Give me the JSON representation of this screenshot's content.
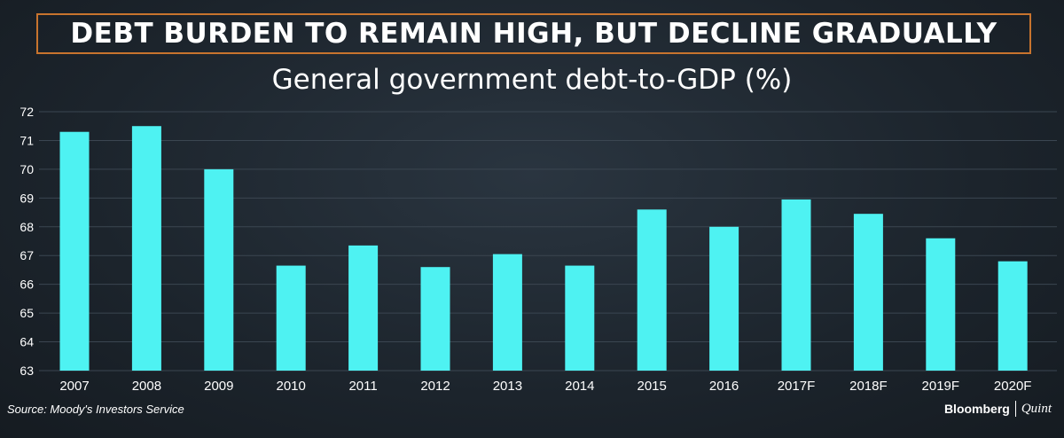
{
  "headline": "DEBT BURDEN TO REMAIN HIGH, BUT DECLINE GRADUALLY",
  "source": "Source: Moody's Investors Service",
  "brand": {
    "name": "Bloomberg",
    "partner": "Quint"
  },
  "colors": {
    "bar": "#4ef2f2",
    "grid": "#3b4651",
    "frame": "#c8742e",
    "text": "#ffffff"
  },
  "chart_data": {
    "type": "bar",
    "title": "General government debt-to-GDP (%)",
    "xlabel": "",
    "ylabel": "",
    "categories": [
      "2007",
      "2008",
      "2009",
      "2010",
      "2011",
      "2012",
      "2013",
      "2014",
      "2015",
      "2016",
      "2017F",
      "2018F",
      "2019F",
      "2020F"
    ],
    "values": [
      71.3,
      71.5,
      70.0,
      66.65,
      67.35,
      66.6,
      67.05,
      66.65,
      68.6,
      68.0,
      68.95,
      68.45,
      67.6,
      66.8
    ],
    "ylim": [
      63,
      72
    ],
    "yticks": [
      63,
      64,
      65,
      66,
      67,
      68,
      69,
      70,
      71,
      72
    ],
    "grid": true,
    "legend": "none"
  }
}
